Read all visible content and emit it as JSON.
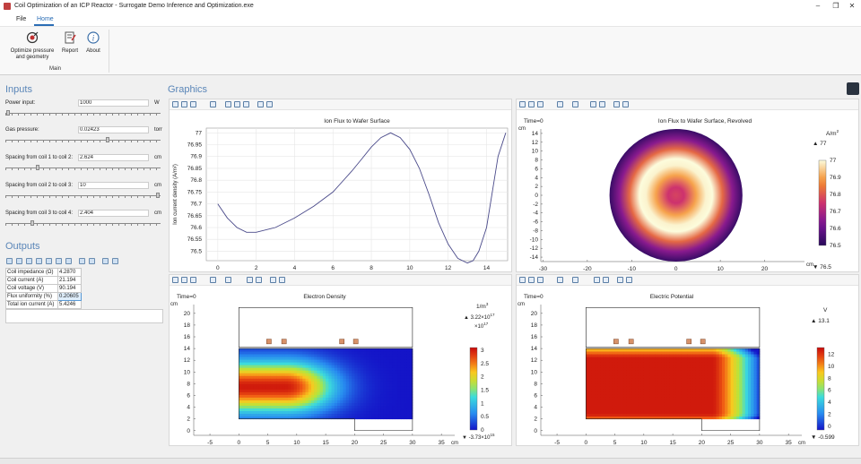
{
  "window": {
    "title": "Coil Optimization of an ICP Reactor - Surrogate Demo Inference and Optimization.exe",
    "min_icon": "minimize-icon",
    "max_icon": "maximize-icon",
    "close_icon": "close-icon"
  },
  "menu": {
    "file": "File",
    "home": "Home"
  },
  "ribbon": {
    "optimize_label": "Optimize pressure and geometry",
    "report_label": "Report",
    "about_label": "About",
    "about_glyph": "i",
    "group_label": "Main"
  },
  "inputs": {
    "title": "Inputs",
    "power_label": "Power input:",
    "power_value": "1000",
    "power_unit": "W",
    "gas_label": "Gas pressure:",
    "gas_value": "0.02423",
    "gas_unit": "torr",
    "s12_label": "Spacing from coil 1 to coil 2:",
    "s12_value": "2.624",
    "s12_unit": "cm",
    "s23_label": "Spacing from coil 2 to coil 3:",
    "s23_value": "10",
    "s23_unit": "cm",
    "s34_label": "Spacing from coil 3 to coil 4:",
    "s34_value": "2.404",
    "s34_unit": "cm"
  },
  "outputs": {
    "title": "Outputs",
    "rows": [
      {
        "label": "Coil impedance (Ω)",
        "value": "4.2870"
      },
      {
        "label": "Coil current (A)",
        "value": "21.194"
      },
      {
        "label": "Coil voltage (V)",
        "value": "90.194"
      },
      {
        "label": "Flux uniformity (%)",
        "value": "0.20605"
      },
      {
        "label": "Total ion current (A)",
        "value": "5.4246"
      }
    ]
  },
  "graphics": {
    "title": "Graphics"
  },
  "chart_data": [
    {
      "type": "line",
      "title": "Ion Flux to Wafer Surface",
      "xlabel": "",
      "ylabel": "Ion current density (A/m²)",
      "xlim": [
        -0.6,
        15.1
      ],
      "ylim": [
        76.46,
        77.02
      ],
      "xticks": [
        0,
        2,
        4,
        6,
        8,
        10,
        12,
        14
      ],
      "yticks": [
        76.5,
        76.55,
        76.6,
        76.65,
        76.7,
        76.75,
        76.8,
        76.85,
        76.9,
        76.95,
        77
      ],
      "grid": true,
      "series": [
        {
          "x": [
            0,
            0.5,
            1,
            1.5,
            2,
            3,
            4,
            5,
            6,
            7,
            7.5,
            8,
            8.5,
            9,
            9.5,
            10,
            10.5,
            11,
            11.5,
            12,
            12.5,
            13,
            13.3,
            13.6,
            14,
            14.3,
            14.6,
            15
          ],
          "y": [
            76.7,
            76.64,
            76.6,
            76.58,
            76.58,
            76.6,
            76.64,
            76.69,
            76.75,
            76.84,
            76.89,
            76.94,
            76.98,
            77.0,
            76.98,
            76.93,
            76.85,
            76.74,
            76.62,
            76.53,
            76.47,
            76.45,
            76.46,
            76.5,
            76.6,
            76.75,
            76.9,
            77.0
          ]
        }
      ]
    },
    {
      "type": "heatmap",
      "title": "Ion Flux to Wafer Surface, Revolved",
      "time_label": "Time=0",
      "xunit": "cm",
      "yunit": "cm",
      "xticks": [
        -30,
        -20,
        -10,
        0,
        10,
        20
      ],
      "yticks": [
        14,
        12,
        10,
        8,
        6,
        4,
        2,
        0,
        -2,
        -4,
        -6,
        -8,
        -10,
        -12,
        -14
      ],
      "xlim": [
        -30.5,
        29
      ],
      "ylim": [
        -15,
        15
      ],
      "disk_radius": 15,
      "cx": 0,
      "cy": 0,
      "colorbar": {
        "unit": "A/m",
        "unit_sup": "2",
        "max": "77",
        "min": "76.5",
        "ticks": [
          "77",
          "76.9",
          "76.8",
          "76.7",
          "76.6",
          "76.5"
        ],
        "top_val": 77,
        "bottom_val": 76.5
      }
    },
    {
      "type": "heatmap",
      "title": "Electron Density",
      "time_label": "Time=0",
      "xunit": "cm",
      "yunit": "cm",
      "xticks": [
        -5,
        0,
        5,
        10,
        15,
        20,
        25,
        30,
        35
      ],
      "yticks": [
        20,
        18,
        16,
        14,
        12,
        10,
        8,
        6,
        4,
        2,
        0
      ],
      "xlim": [
        -7.8,
        37.3
      ],
      "ylim": [
        -0.8,
        21.5
      ],
      "colorbar": {
        "unit": "1/m",
        "unit_sup": "3",
        "max_base": "3.22×10",
        "max_exp": "17",
        "scale_base": "×10",
        "scale_exp": "17",
        "min_base": "-3.73×10",
        "min_exp": "15",
        "ticks": [
          "3",
          "2.5",
          "2",
          "1.5",
          "1",
          "0.5",
          "0"
        ],
        "top_val": 3.1,
        "bottom_val": 0
      }
    },
    {
      "type": "heatmap",
      "title": "Electric Potential",
      "time_label": "Time=0",
      "xunit": "cm",
      "yunit": "cm",
      "xticks": [
        -5,
        0,
        5,
        10,
        15,
        20,
        25,
        30,
        35
      ],
      "yticks": [
        20,
        18,
        16,
        14,
        12,
        10,
        8,
        6,
        4,
        2,
        0
      ],
      "xlim": [
        -7.8,
        37.3
      ],
      "ylim": [
        -0.8,
        21.5
      ],
      "colorbar": {
        "unit": "V",
        "max": "13.1",
        "min": "-0.599",
        "ticks": [
          "12",
          "10",
          "8",
          "6",
          "4",
          "2",
          "0"
        ],
        "top_val": 13.1,
        "bottom_val": -0.599
      }
    }
  ]
}
